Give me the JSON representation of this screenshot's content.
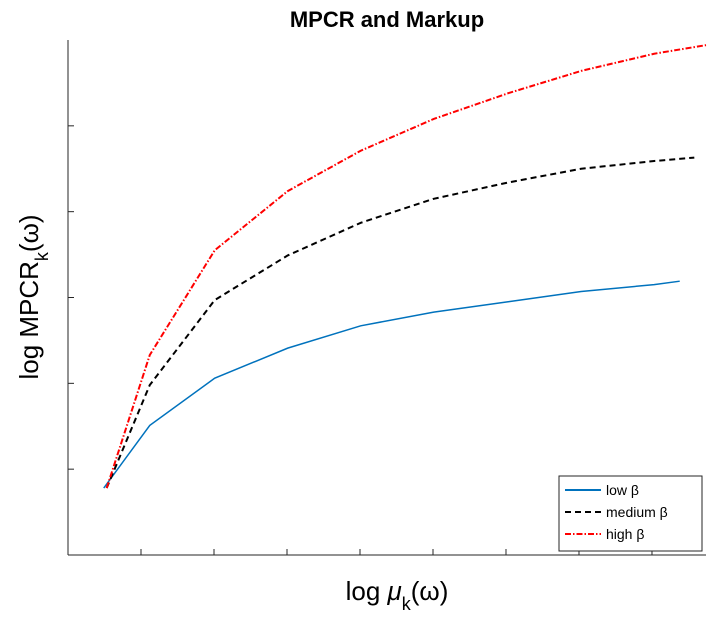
{
  "chart_data": {
    "type": "line",
    "title": "MPCR and Markup",
    "xlabel": [
      "log ",
      "μ",
      "k",
      "(ω)"
    ],
    "ylabel": [
      "log MPCR",
      "k",
      "(ω)"
    ],
    "xlim": [
      0,
      8.74
    ],
    "xticks": [
      1,
      2,
      3,
      4,
      5,
      6,
      7,
      8
    ],
    "ylim": [
      0,
      6
    ],
    "yticks": [
      1,
      2,
      3,
      4,
      5
    ],
    "legend": "lower right",
    "series": [
      {
        "name": "low β",
        "color": "#0072bd",
        "dash": "solid",
        "x": [
          0.49,
          1.12,
          2.01,
          3.01,
          4.01,
          5.01,
          6.03,
          7.03,
          8.03,
          8.38
        ],
        "values": [
          0.78,
          1.51,
          2.06,
          2.41,
          2.67,
          2.83,
          2.95,
          3.07,
          3.15,
          3.19
        ]
      },
      {
        "name": "medium β",
        "color": "#000000",
        "dash": "dashed",
        "x": [
          0.53,
          1.12,
          2.01,
          3.01,
          4.01,
          5.01,
          6.03,
          7.03,
          8.03,
          8.58
        ],
        "values": [
          0.78,
          1.98,
          2.97,
          3.49,
          3.87,
          4.15,
          4.34,
          4.5,
          4.59,
          4.63
        ]
      },
      {
        "name": "high β",
        "color": "#ff0000",
        "dash": "dashdot",
        "x": [
          0.53,
          1.12,
          2.01,
          3.01,
          4.01,
          5.01,
          6.03,
          7.03,
          8.03,
          8.74
        ],
        "values": [
          0.78,
          2.33,
          3.55,
          4.24,
          4.71,
          5.08,
          5.38,
          5.64,
          5.84,
          5.94
        ]
      }
    ]
  }
}
